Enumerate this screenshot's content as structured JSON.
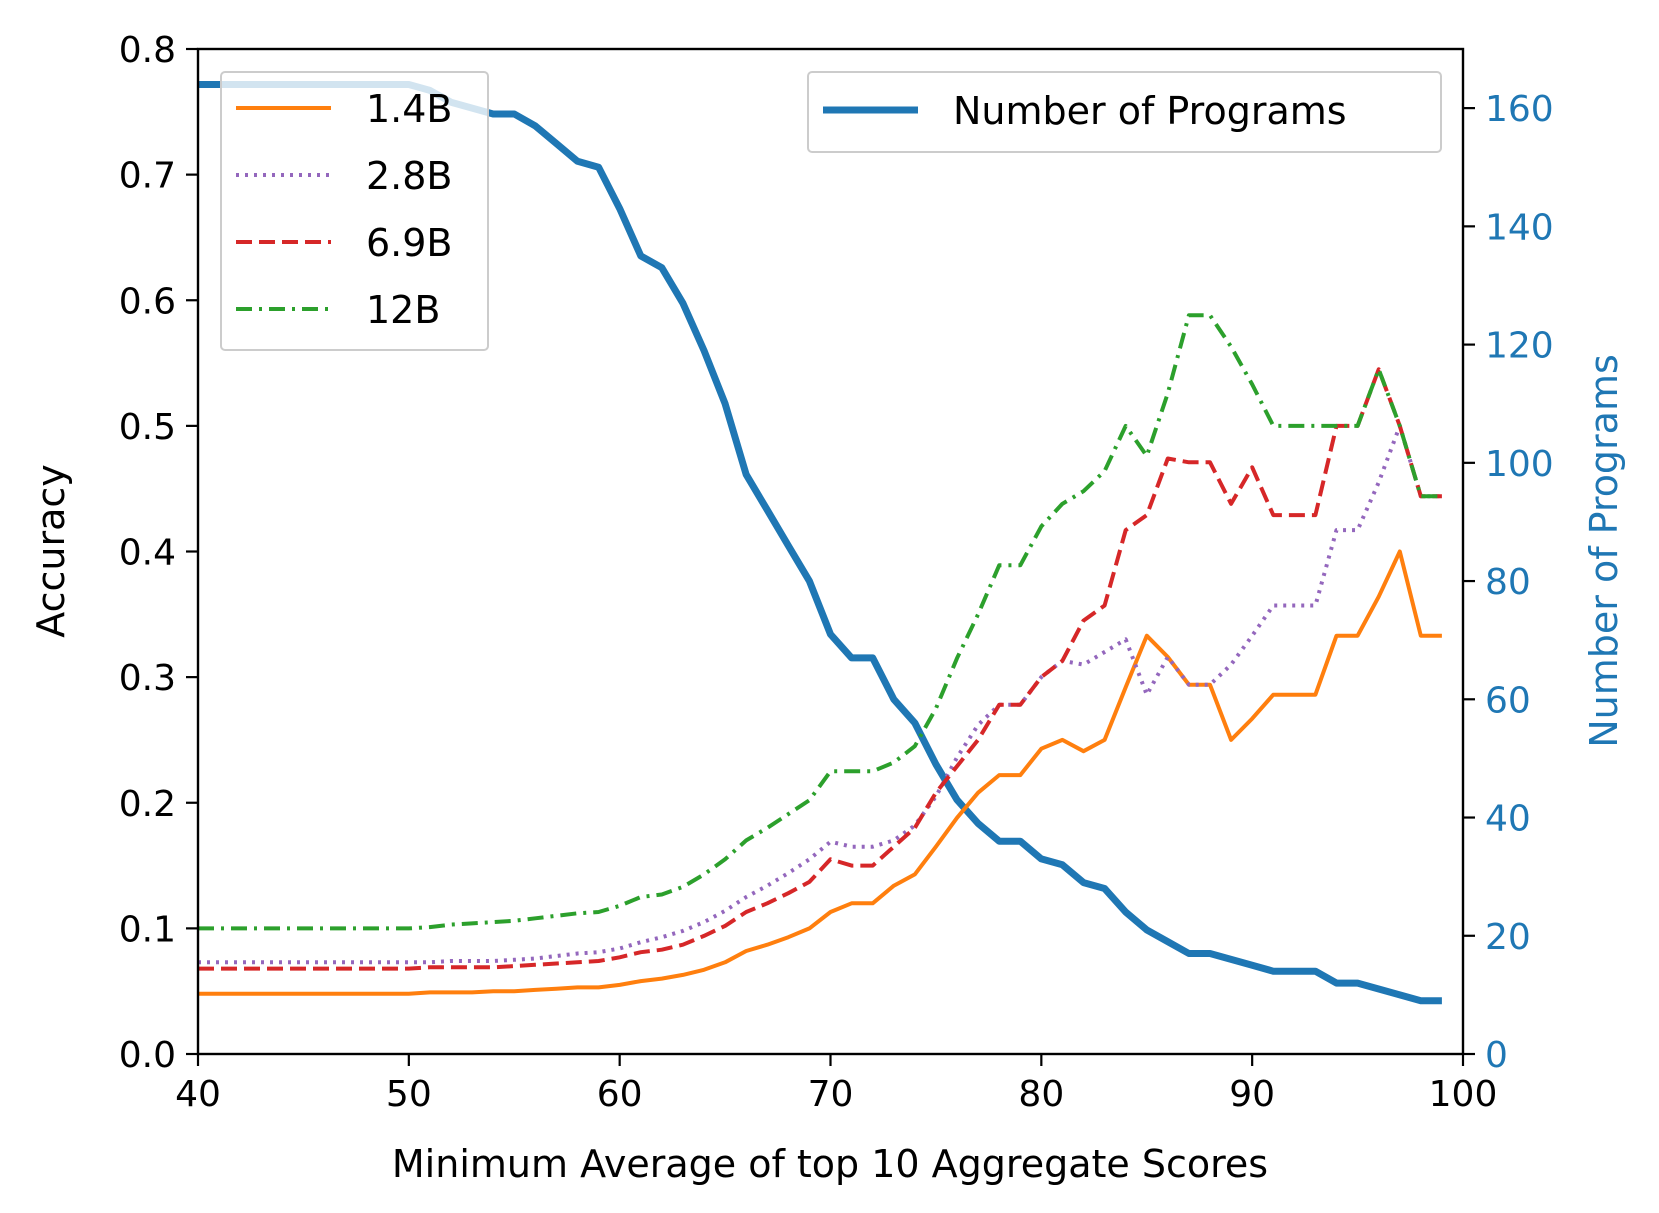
{
  "chart_data": {
    "type": "line",
    "xlabel": "Minimum Average of top 10 Aggregate Scores",
    "ylabel": "Accuracy",
    "y2label": "Number of Programs",
    "xlim": [
      40,
      100
    ],
    "ylim": [
      0,
      0.8
    ],
    "y2lim": [
      0,
      170
    ],
    "grid": false,
    "x_ticks": [
      "40",
      "50",
      "60",
      "70",
      "80",
      "90",
      "100"
    ],
    "y_ticks": [
      "0.0",
      "0.1",
      "0.2",
      "0.3",
      "0.4",
      "0.5",
      "0.6",
      "0.7",
      "0.8"
    ],
    "y2_ticks": [
      "0",
      "20",
      "40",
      "60",
      "80",
      "100",
      "120",
      "140",
      "160"
    ],
    "legend_accuracy": {
      "placement": "top-left"
    },
    "legend_programs": {
      "placement": "top-right"
    },
    "x": [
      40,
      41,
      42,
      43,
      44,
      45,
      46,
      47,
      48,
      49,
      50,
      51,
      52,
      53,
      54,
      55,
      56,
      57,
      58,
      59,
      60,
      61,
      62,
      63,
      64,
      65,
      66,
      67,
      68,
      69,
      70,
      71,
      72,
      73,
      74,
      75,
      76,
      77,
      78,
      79,
      80,
      81,
      82,
      83,
      84,
      85,
      86,
      87,
      88,
      89,
      90,
      91,
      92,
      93,
      94,
      95,
      96,
      97,
      98,
      99
    ],
    "series": [
      {
        "name": "1.4B",
        "color": "#ff7f0e",
        "style": "solid",
        "axis": "left",
        "values": [
          0.048,
          0.048,
          0.048,
          0.048,
          0.048,
          0.048,
          0.048,
          0.048,
          0.048,
          0.048,
          0.048,
          0.049,
          0.049,
          0.049,
          0.05,
          0.05,
          0.051,
          0.052,
          0.053,
          0.053,
          0.055,
          0.058,
          0.06,
          0.063,
          0.067,
          0.073,
          0.082,
          0.087,
          0.093,
          0.1,
          0.113,
          0.12,
          0.12,
          0.134,
          0.143,
          0.165,
          0.188,
          0.208,
          0.222,
          0.222,
          0.243,
          0.25,
          0.241,
          0.25,
          0.292,
          0.333,
          0.316,
          0.294,
          0.294,
          0.25,
          0.267,
          0.286,
          0.286,
          0.286,
          0.333,
          0.333,
          0.364,
          0.4,
          0.333,
          0.333
        ]
      },
      {
        "name": "2.8B",
        "color": "#9467bd",
        "style": "dotted",
        "axis": "left",
        "values": [
          0.073,
          0.073,
          0.073,
          0.073,
          0.073,
          0.073,
          0.073,
          0.073,
          0.073,
          0.073,
          0.073,
          0.073,
          0.074,
          0.074,
          0.074,
          0.075,
          0.076,
          0.078,
          0.08,
          0.081,
          0.084,
          0.089,
          0.093,
          0.098,
          0.105,
          0.114,
          0.125,
          0.134,
          0.144,
          0.155,
          0.169,
          0.165,
          0.165,
          0.17,
          0.182,
          0.205,
          0.236,
          0.262,
          0.278,
          0.278,
          0.3,
          0.313,
          0.31,
          0.32,
          0.33,
          0.286,
          0.316,
          0.294,
          0.294,
          0.31,
          0.333,
          0.357,
          0.357,
          0.357,
          0.417,
          0.417,
          0.455,
          0.5,
          0.444,
          0.444
        ]
      },
      {
        "name": "6.9B",
        "color": "#d62728",
        "style": "dashed",
        "axis": "left",
        "values": [
          0.068,
          0.068,
          0.068,
          0.068,
          0.068,
          0.068,
          0.068,
          0.068,
          0.068,
          0.068,
          0.068,
          0.069,
          0.069,
          0.069,
          0.069,
          0.07,
          0.071,
          0.072,
          0.073,
          0.074,
          0.077,
          0.081,
          0.083,
          0.087,
          0.094,
          0.102,
          0.113,
          0.12,
          0.128,
          0.137,
          0.155,
          0.15,
          0.15,
          0.165,
          0.18,
          0.208,
          0.229,
          0.25,
          0.278,
          0.278,
          0.3,
          0.313,
          0.345,
          0.357,
          0.417,
          0.429,
          0.474,
          0.471,
          0.471,
          0.438,
          0.467,
          0.429,
          0.429,
          0.429,
          0.5,
          0.5,
          0.545,
          0.5,
          0.444,
          0.444
        ]
      },
      {
        "name": "12B",
        "color": "#2ca02c",
        "style": "dashdot",
        "axis": "left",
        "values": [
          0.1,
          0.1,
          0.1,
          0.1,
          0.1,
          0.1,
          0.1,
          0.1,
          0.1,
          0.1,
          0.1,
          0.101,
          0.103,
          0.104,
          0.105,
          0.106,
          0.108,
          0.11,
          0.112,
          0.113,
          0.118,
          0.125,
          0.127,
          0.133,
          0.143,
          0.155,
          0.17,
          0.18,
          0.191,
          0.202,
          0.225,
          0.225,
          0.225,
          0.232,
          0.245,
          0.275,
          0.315,
          0.35,
          0.389,
          0.389,
          0.42,
          0.438,
          0.448,
          0.464,
          0.5,
          0.476,
          0.526,
          0.588,
          0.588,
          0.563,
          0.533,
          0.5,
          0.5,
          0.5,
          0.5,
          0.5,
          0.545,
          0.5,
          0.444,
          0.444
        ]
      },
      {
        "name": "Number of Programs",
        "color": "#1f77b4",
        "style": "solid",
        "axis": "right",
        "values": [
          164,
          164,
          164,
          164,
          164,
          164,
          164,
          164,
          164,
          164,
          164,
          163,
          161,
          160,
          159,
          159,
          157,
          154,
          151,
          150,
          143,
          135,
          133,
          127,
          119,
          110,
          98,
          92,
          86,
          80,
          71,
          67,
          67,
          60,
          56,
          49,
          43,
          39,
          36,
          36,
          33,
          32,
          29,
          28,
          24,
          21,
          19,
          17,
          17,
          16,
          15,
          14,
          14,
          14,
          12,
          12,
          11,
          10,
          9,
          9
        ]
      }
    ]
  }
}
